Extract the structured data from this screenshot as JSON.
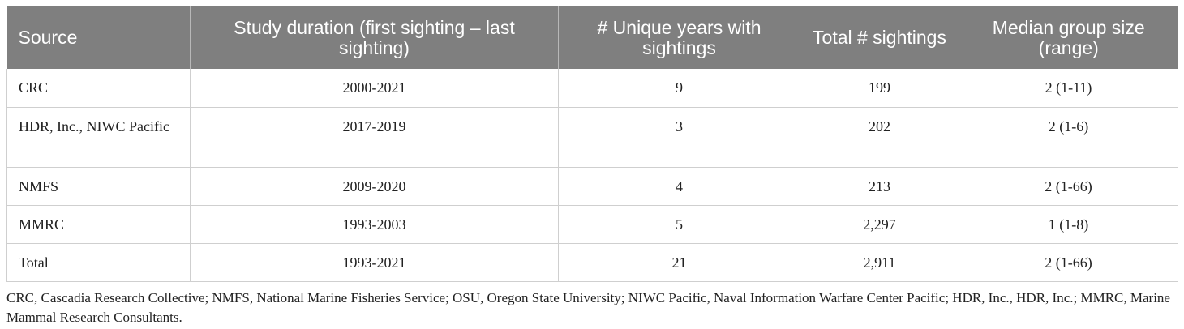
{
  "table": {
    "headers": [
      "Source",
      "Study duration (first sighting – last sighting)",
      "# Unique years with sightings",
      "Total # sightings",
      "Median group size (range)"
    ],
    "rows": [
      [
        "CRC",
        "2000-2021",
        "9",
        "199",
        "2 (1-11)"
      ],
      [
        "HDR, Inc., NIWC Pacific",
        "2017-2019",
        "3",
        "202",
        "2 (1-6)"
      ],
      [
        "NMFS",
        "2009-2020",
        "4",
        "213",
        "2 (1-66)"
      ],
      [
        "MMRC",
        "1993-2003",
        "5",
        "2,297",
        "1 (1-8)"
      ],
      [
        "Total",
        "1993-2021",
        "21",
        "2,911",
        "2 (1-66)"
      ]
    ]
  },
  "footnote": "CRC, Cascadia Research Collective; NMFS, National Marine Fisheries Service; OSU, Oregon State University; NIWC Pacific, Naval Information Warfare Center Pacific; HDR, Inc., HDR, Inc.; MMRC, Marine Mammal Research Consultants."
}
